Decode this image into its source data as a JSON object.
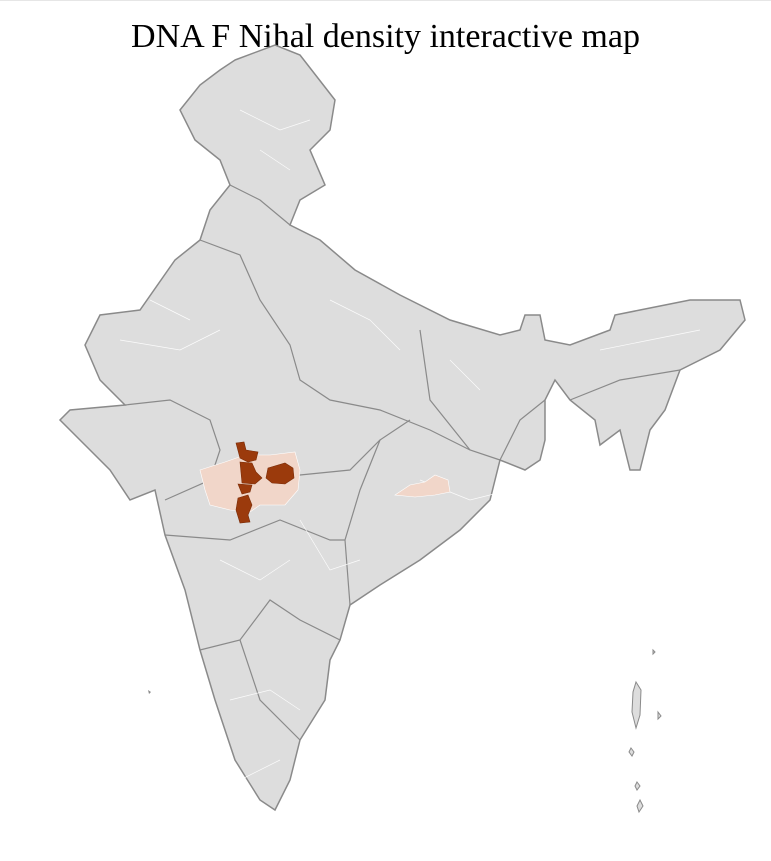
{
  "title": "DNA F Nihal density interactive map",
  "map": {
    "region": "India districts",
    "colors": {
      "background_region": "#dddddd",
      "district_border": "#ffffff",
      "state_border": "#8a8a8a",
      "high_density": "#9b3a0c",
      "low_density": "#f1d6c9"
    },
    "legend_visible": false
  }
}
